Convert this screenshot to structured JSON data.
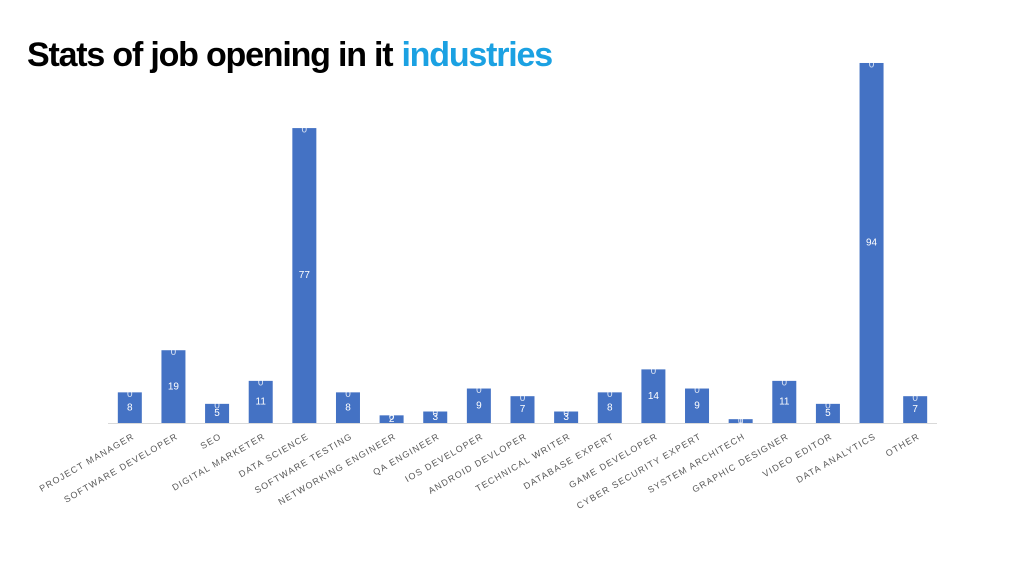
{
  "chart_data": {
    "type": "stacked_bar",
    "title": {
      "text": "Stats of job opening in it",
      "highlight": "industries"
    },
    "categories": [
      "PROJECT MANAGER",
      "SOFTWARE DEVELOPER",
      "SEO",
      "DIGITAL MARKETER",
      "DATA SCIENCE",
      "SOFTWARE TESTING",
      "NETWORKING ENGINEER",
      "QA ENGINEER",
      "IOS DEVELOPER",
      "ANDROID DEVLOPER",
      "TECHNICAL WRITER",
      "DATABASE EXPERT",
      "GAME DEVELOPER",
      "CYBER SECURITY EXPERT",
      "SYSTEM ARCHITECH",
      "GRAPHIC DESIGNER",
      "VIDEO EDITOR",
      "DATA ANALYTICS",
      "OTHER"
    ],
    "series": [
      {
        "color": "#4472c4",
        "values": [
          8,
          19,
          5,
          11,
          77,
          8,
          2,
          3,
          9,
          7,
          3,
          8,
          14,
          9,
          1,
          11,
          5,
          94,
          7
        ]
      },
      {
        "color": "#4472c4",
        "values": [
          0,
          0,
          0,
          0,
          0,
          0,
          0,
          0,
          0,
          0,
          0,
          0,
          0,
          0,
          0,
          0,
          0,
          0,
          0
        ]
      }
    ],
    "ylim": [
      0,
      100
    ],
    "title_colors": [
      "#000000",
      "#1ba1e2"
    ]
  }
}
